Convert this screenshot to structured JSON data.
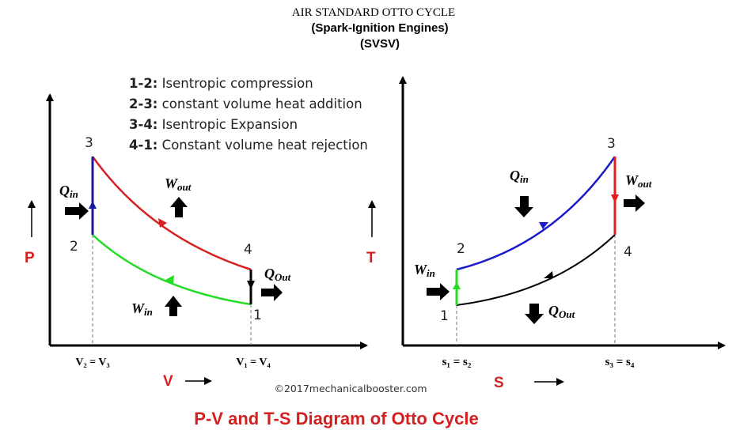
{
  "header": {
    "title": "AIR STANDARD OTTO CYCLE",
    "subtitle": "(Spark-Ignition Engines)",
    "code": "(SVSV)"
  },
  "legend": [
    {
      "key": "1-2:",
      "text": "Isentropic compression"
    },
    {
      "key": "2-3:",
      "text": "constant volume heat addition"
    },
    {
      "key": "3-4:",
      "text": "Isentropic Expansion"
    },
    {
      "key": "4-1:",
      "text": "Constant volume heat rejection"
    }
  ],
  "pv": {
    "ylabel": "P",
    "xlabel": "V",
    "points": {
      "p1": "1",
      "p2": "2",
      "p3": "3",
      "p4": "4"
    },
    "ticks": {
      "left": "V₂ = V₃",
      "right": "V₁ = V₄"
    },
    "labels": {
      "qin": "Q",
      "qin_sub": "in",
      "wout": "W",
      "wout_sub": "out",
      "qout": "Q",
      "qout_sub": "Out",
      "win": "W",
      "win_sub": "in"
    },
    "colors": {
      "compression": "#22dd22",
      "heat_add": "#1a1a9a",
      "expansion": "#d42020",
      "heat_rej": "#000000"
    }
  },
  "ts": {
    "ylabel": "T",
    "xlabel": "S",
    "points": {
      "p1": "1",
      "p2": "2",
      "p3": "3",
      "p4": "4"
    },
    "ticks": {
      "left": "s₁ = s₂",
      "right": "s₃ = s₄"
    },
    "labels": {
      "qin": "Q",
      "qin_sub": "in",
      "wout": "W",
      "wout_sub": "out",
      "qout": "Q",
      "qout_sub": "Out",
      "win": "W",
      "win_sub": "in"
    },
    "colors": {
      "compression": "#22dd22",
      "heat_add": "#1a1aca",
      "expansion": "#e02020",
      "heat_rej": "#000000"
    }
  },
  "footer": {
    "copyright": "©2017mechanicalbooster.com",
    "caption": "P-V and T-S Diagram of Otto Cycle"
  }
}
